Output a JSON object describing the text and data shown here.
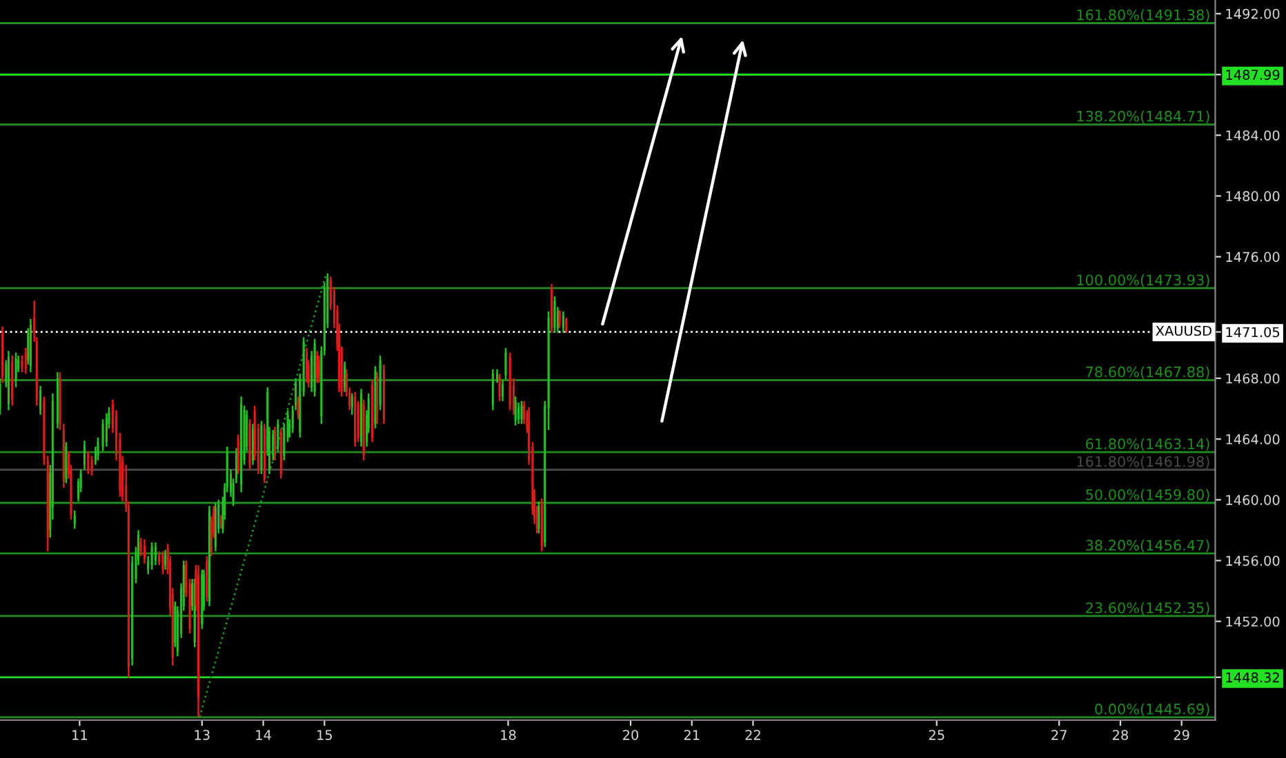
{
  "chart_data": {
    "type": "candlestick",
    "xlim": [
      9.7,
      29.55
    ],
    "ylim": [
      1445.5,
      1492.9
    ],
    "xticks": [
      11,
      13,
      14,
      15,
      18,
      20,
      21,
      22,
      25,
      27,
      28,
      29
    ],
    "yticks": [
      {
        "value": 1448.32,
        "label": "1448.32"
      },
      {
        "value": 1452,
        "label": "1452.00"
      },
      {
        "value": 1456,
        "label": "1456.00"
      },
      {
        "value": 1460,
        "label": "1460.00"
      },
      {
        "value": 1464,
        "label": "1464.00"
      },
      {
        "value": 1468,
        "label": "1468.00"
      },
      {
        "value": 1471.05,
        "label": "1471.05"
      },
      {
        "value": 1476,
        "label": "1476.00"
      },
      {
        "value": 1480,
        "label": "1480.00"
      },
      {
        "value": 1484,
        "label": "1484.00"
      },
      {
        "value": 1487.99,
        "label": "1487.99"
      },
      {
        "value": 1492,
        "label": "1492.00"
      }
    ],
    "line_style": "dotted",
    "series": [
      {
        "type": "line",
        "color": "#1f8f1f",
        "x": [
          12.96,
          15.03
        ],
        "values": [
          1445.7,
          1474.9
        ]
      },
      {
        "color": "#22c022",
        "x": [
          9.7,
          9.8,
          9.84,
          9.96,
          10.0,
          10.16,
          10.2,
          10.36,
          10.52,
          10.56,
          10.64,
          10.78,
          10.92,
          10.98,
          11.02,
          11.08,
          11.26,
          11.3,
          11.38,
          11.44,
          11.48,
          11.86,
          11.92,
          11.96,
          12.12,
          12.18,
          12.24,
          12.4,
          12.56,
          12.6,
          12.66,
          12.7,
          12.84,
          12.88,
          13.0,
          13.03,
          13.12,
          13.22,
          13.27,
          13.34,
          13.37,
          13.41,
          13.47,
          13.51,
          13.56,
          13.64,
          13.69,
          13.73,
          13.83,
          13.97,
          14.07,
          14.1,
          14.16,
          14.24,
          14.34,
          14.4,
          14.43,
          14.48,
          14.53,
          14.6,
          14.66,
          14.79,
          14.84,
          14.95,
          15.0,
          15.05,
          15.33,
          15.45,
          15.6,
          15.69,
          15.72,
          15.83,
          15.91,
          17.75,
          17.82,
          17.91,
          17.96,
          18.12,
          18.17,
          18.22,
          18.5,
          18.6,
          18.66,
          18.76,
          18.81,
          18.9
        ],
        "ohlc": [
          [
            1466.0,
            1468.0,
            1465.6,
            1467.6
          ],
          [
            1467.7,
            1469.2,
            1467.4,
            1468.9
          ],
          [
            1466.3,
            1469.8,
            1465.9,
            1469.4
          ],
          [
            1467.8,
            1469.7,
            1467.4,
            1469.3
          ],
          [
            1468.6,
            1469.5,
            1468.4,
            1469.2
          ],
          [
            1469.2,
            1471.3,
            1468.9,
            1471.0
          ],
          [
            1468.8,
            1471.9,
            1468.4,
            1471.5
          ],
          [
            1465.9,
            1467.5,
            1465.6,
            1467.2
          ],
          [
            1458.0,
            1462.3,
            1457.5,
            1461.8
          ],
          [
            1459.5,
            1467.0,
            1458.7,
            1466.5
          ],
          [
            1465.0,
            1468.4,
            1464.7,
            1468.0
          ],
          [
            1461.4,
            1463.8,
            1461.1,
            1463.5
          ],
          [
            1458.4,
            1459.3,
            1458.1,
            1459.0
          ],
          [
            1460.1,
            1461.4,
            1459.9,
            1461.2
          ],
          [
            1460.8,
            1462.0,
            1460.5,
            1461.7
          ],
          [
            1462.3,
            1463.9,
            1462.0,
            1463.6
          ],
          [
            1462.5,
            1463.5,
            1462.3,
            1463.2
          ],
          [
            1462.9,
            1464.1,
            1462.6,
            1463.8
          ],
          [
            1463.5,
            1465.3,
            1463.2,
            1465.0
          ],
          [
            1463.8,
            1465.7,
            1463.5,
            1465.4
          ],
          [
            1465.0,
            1466.1,
            1464.7,
            1465.8
          ],
          [
            1449.5,
            1456.3,
            1449.1,
            1455.9
          ],
          [
            1454.8,
            1456.9,
            1454.5,
            1456.6
          ],
          [
            1456.0,
            1458.0,
            1455.7,
            1457.7
          ],
          [
            1455.4,
            1456.3,
            1455.1,
            1456.0
          ],
          [
            1455.7,
            1457.2,
            1455.4,
            1456.9
          ],
          [
            1456.0,
            1457.2,
            1455.7,
            1456.9
          ],
          [
            1455.7,
            1456.7,
            1455.4,
            1456.4
          ],
          [
            1450.6,
            1453.3,
            1450.3,
            1453.0
          ],
          [
            1450.0,
            1453.0,
            1449.7,
            1452.7
          ],
          [
            1451.2,
            1454.5,
            1450.9,
            1454.2
          ],
          [
            1453.0,
            1456.0,
            1452.7,
            1455.7
          ],
          [
            1453.0,
            1454.8,
            1452.7,
            1454.5
          ],
          [
            1450.6,
            1454.8,
            1450.3,
            1454.5
          ],
          [
            1451.8,
            1455.4,
            1451.5,
            1455.1
          ],
          [
            1453.0,
            1455.4,
            1452.7,
            1455.1
          ],
          [
            1453.3,
            1459.6,
            1453.0,
            1459.3
          ],
          [
            1456.9,
            1459.8,
            1456.6,
            1459.5
          ],
          [
            1458.1,
            1460.0,
            1457.8,
            1459.7
          ],
          [
            1458.1,
            1460.2,
            1457.8,
            1459.9
          ],
          [
            1459.0,
            1461.1,
            1458.7,
            1460.8
          ],
          [
            1460.8,
            1463.5,
            1460.5,
            1463.2
          ],
          [
            1460.5,
            1462.0,
            1460.2,
            1461.7
          ],
          [
            1459.9,
            1461.4,
            1459.6,
            1461.1
          ],
          [
            1461.4,
            1463.4,
            1461.1,
            1463.1
          ],
          [
            1461.0,
            1466.8,
            1460.5,
            1466.3
          ],
          [
            1462.6,
            1466.2,
            1462.3,
            1465.9
          ],
          [
            1463.5,
            1465.9,
            1463.2,
            1465.6
          ],
          [
            1462.6,
            1465.0,
            1462.3,
            1464.7
          ],
          [
            1462.0,
            1465.2,
            1461.7,
            1464.9
          ],
          [
            1463.2,
            1467.4,
            1462.9,
            1467.1
          ],
          [
            1462.0,
            1464.8,
            1461.7,
            1464.5
          ],
          [
            1462.9,
            1464.6,
            1462.6,
            1464.3
          ],
          [
            1463.5,
            1465.3,
            1463.2,
            1465.0
          ],
          [
            1462.9,
            1465.0,
            1462.6,
            1464.7
          ],
          [
            1464.1,
            1465.9,
            1463.8,
            1465.6
          ],
          [
            1464.4,
            1465.3,
            1464.1,
            1465.0
          ],
          [
            1464.7,
            1466.2,
            1464.4,
            1465.9
          ],
          [
            1466.2,
            1468.0,
            1465.9,
            1467.7
          ],
          [
            1464.4,
            1468.3,
            1464.1,
            1468.0
          ],
          [
            1467.1,
            1470.7,
            1466.8,
            1470.4
          ],
          [
            1467.4,
            1469.8,
            1467.1,
            1469.5
          ],
          [
            1467.1,
            1470.6,
            1466.8,
            1470.3
          ],
          [
            1465.5,
            1470.1,
            1465.0,
            1469.8
          ],
          [
            1469.8,
            1474.3,
            1469.5,
            1474.0
          ],
          [
            1471.6,
            1474.9,
            1471.3,
            1474.6
          ],
          [
            1467.4,
            1469.1,
            1467.1,
            1468.8
          ],
          [
            1466.1,
            1467.0,
            1465.6,
            1466.8
          ],
          [
            1463.8,
            1467.3,
            1463.5,
            1467.0
          ],
          [
            1463.8,
            1465.9,
            1463.5,
            1465.6
          ],
          [
            1464.7,
            1467.0,
            1464.4,
            1466.7
          ],
          [
            1465.0,
            1468.8,
            1464.7,
            1468.5
          ],
          [
            1466.2,
            1469.5,
            1465.9,
            1469.2
          ],
          [
            1466.2,
            1468.6,
            1465.9,
            1468.3
          ],
          [
            1467.8,
            1468.6,
            1467.7,
            1468.3
          ],
          [
            1466.8,
            1467.9,
            1466.5,
            1467.6
          ],
          [
            1468.2,
            1470.0,
            1467.9,
            1469.7
          ],
          [
            1465.2,
            1466.8,
            1464.9,
            1466.5
          ],
          [
            1465.3,
            1466.4,
            1465.0,
            1466.1
          ],
          [
            1465.3,
            1466.5,
            1465.0,
            1466.2
          ],
          [
            1458.1,
            1459.9,
            1457.8,
            1459.6
          ],
          [
            1457.2,
            1466.5,
            1456.9,
            1466.2
          ],
          [
            1466.0,
            1472.4,
            1464.6,
            1472.0
          ],
          [
            1471.3,
            1473.4,
            1471.0,
            1473.1
          ],
          [
            1471.3,
            1472.7,
            1471.0,
            1472.4
          ],
          [
            1471.3,
            1472.4,
            1471.0,
            1472.1
          ]
        ]
      },
      {
        "color": "#e01b1b",
        "x": [
          9.74,
          9.9,
          10.06,
          10.12,
          10.26,
          10.3,
          10.42,
          10.48,
          10.68,
          10.74,
          10.82,
          10.86,
          11.14,
          11.2,
          11.54,
          11.6,
          11.66,
          11.7,
          11.76,
          11.8,
          12.0,
          12.06,
          12.3,
          12.36,
          12.44,
          12.48,
          12.52,
          12.74,
          12.8,
          12.9,
          12.94,
          13.08,
          13.15,
          13.19,
          13.31,
          13.59,
          13.78,
          13.86,
          13.92,
          14.02,
          14.19,
          14.29,
          14.57,
          14.71,
          14.74,
          14.88,
          14.91,
          15.1,
          15.16,
          15.21,
          15.24,
          15.28,
          15.36,
          15.41,
          15.5,
          15.55,
          15.64,
          15.78,
          15.86,
          15.97,
          17.86,
          18.03,
          18.09,
          18.26,
          18.31,
          18.34,
          18.4,
          18.43,
          18.47,
          18.55,
          18.71,
          18.84,
          18.95
        ],
        "ohlc": [
          [
            1471.0,
            1471.4,
            1467.7,
            1468.1
          ],
          [
            1469.1,
            1469.5,
            1466.2,
            1466.6
          ],
          [
            1469.2,
            1469.5,
            1468.4,
            1468.7
          ],
          [
            1469.6,
            1470.0,
            1468.3,
            1468.6
          ],
          [
            1472.0,
            1473.1,
            1470.4,
            1471.0
          ],
          [
            1470.4,
            1470.7,
            1466.2,
            1466.6
          ],
          [
            1466.5,
            1466.8,
            1462.3,
            1462.7
          ],
          [
            1462.5,
            1462.9,
            1456.6,
            1457.5
          ],
          [
            1468.0,
            1468.4,
            1464.6,
            1465.0
          ],
          [
            1464.6,
            1465.0,
            1460.8,
            1461.2
          ],
          [
            1463.0,
            1463.2,
            1461.4,
            1461.7
          ],
          [
            1462.0,
            1462.3,
            1458.7,
            1459.0
          ],
          [
            1463.0,
            1463.2,
            1461.7,
            1462.0
          ],
          [
            1462.6,
            1462.9,
            1461.6,
            1461.9
          ],
          [
            1466.3,
            1466.6,
            1464.4,
            1464.7
          ],
          [
            1465.6,
            1465.9,
            1462.6,
            1462.9
          ],
          [
            1464.0,
            1464.4,
            1460.2,
            1460.6
          ],
          [
            1462.6,
            1462.9,
            1459.9,
            1460.2
          ],
          [
            1461.0,
            1462.3,
            1459.2,
            1459.5
          ],
          [
            1459.6,
            1459.9,
            1448.3,
            1449.0
          ],
          [
            1457.2,
            1457.5,
            1456.3,
            1456.6
          ],
          [
            1457.0,
            1457.4,
            1455.8,
            1456.1
          ],
          [
            1456.4,
            1456.6,
            1455.7,
            1455.9
          ],
          [
            1456.4,
            1456.6,
            1455.1,
            1455.4
          ],
          [
            1456.8,
            1457.1,
            1455.1,
            1455.4
          ],
          [
            1456.0,
            1456.3,
            1452.4,
            1452.8
          ],
          [
            1453.8,
            1454.2,
            1449.1,
            1449.6
          ],
          [
            1455.7,
            1456.0,
            1453.6,
            1453.9
          ],
          [
            1454.5,
            1454.8,
            1451.2,
            1451.5
          ],
          [
            1455.4,
            1455.7,
            1452.7,
            1453.0
          ],
          [
            1455.0,
            1455.7,
            1445.7,
            1447.0
          ],
          [
            1456.0,
            1456.3,
            1453.3,
            1453.6
          ],
          [
            1458.6,
            1458.9,
            1456.3,
            1456.6
          ],
          [
            1459.3,
            1459.6,
            1457.5,
            1457.8
          ],
          [
            1458.7,
            1459.0,
            1458.1,
            1458.4
          ],
          [
            1464.0,
            1464.3,
            1461.7,
            1462.0
          ],
          [
            1465.0,
            1465.3,
            1462.0,
            1462.3
          ],
          [
            1465.9,
            1466.2,
            1462.6,
            1462.9
          ],
          [
            1464.7,
            1465.0,
            1461.7,
            1462.0
          ],
          [
            1464.7,
            1465.0,
            1461.1,
            1461.4
          ],
          [
            1464.5,
            1464.8,
            1462.6,
            1462.9
          ],
          [
            1464.4,
            1464.7,
            1461.4,
            1461.7
          ],
          [
            1466.5,
            1466.8,
            1465.3,
            1465.6
          ],
          [
            1469.7,
            1470.0,
            1467.7,
            1468.0
          ],
          [
            1468.9,
            1469.2,
            1467.4,
            1467.7
          ],
          [
            1469.5,
            1469.8,
            1467.7,
            1468.0
          ],
          [
            1469.2,
            1469.5,
            1467.7,
            1468.0
          ],
          [
            1474.5,
            1474.7,
            1472.5,
            1472.8
          ],
          [
            1473.7,
            1474.0,
            1471.3,
            1471.6
          ],
          [
            1472.5,
            1472.8,
            1469.8,
            1470.1
          ],
          [
            1471.3,
            1471.6,
            1467.1,
            1467.4
          ],
          [
            1470.0,
            1470.1,
            1466.8,
            1467.1
          ],
          [
            1468.3,
            1468.6,
            1466.8,
            1467.1
          ],
          [
            1467.1,
            1467.4,
            1465.9,
            1466.2
          ],
          [
            1466.8,
            1467.1,
            1463.5,
            1463.8
          ],
          [
            1466.3,
            1466.5,
            1463.8,
            1464.1
          ],
          [
            1466.3,
            1466.6,
            1462.6,
            1462.9
          ],
          [
            1467.6,
            1467.9,
            1463.8,
            1464.1
          ],
          [
            1468.1,
            1468.4,
            1465.0,
            1465.3
          ],
          [
            1468.6,
            1468.9,
            1465.0,
            1465.3
          ],
          [
            1468.1,
            1468.3,
            1466.5,
            1466.8
          ],
          [
            1469.4,
            1469.7,
            1465.9,
            1466.2
          ],
          [
            1467.5,
            1468.0,
            1465.6,
            1465.9
          ],
          [
            1466.2,
            1466.5,
            1465.0,
            1465.3
          ],
          [
            1465.7,
            1465.9,
            1464.4,
            1464.7
          ],
          [
            1465.2,
            1466.1,
            1462.3,
            1462.6
          ],
          [
            1463.5,
            1463.8,
            1459.0,
            1459.3
          ],
          [
            1460.4,
            1460.7,
            1458.4,
            1458.7
          ],
          [
            1459.3,
            1459.6,
            1457.8,
            1458.1
          ],
          [
            1459.8,
            1460.1,
            1456.6,
            1456.9
          ],
          [
            1473.9,
            1474.2,
            1471.0,
            1471.3
          ],
          [
            1472.4,
            1472.5,
            1471.3,
            1471.6
          ],
          [
            1471.9,
            1472.0,
            1471.0,
            1471.05
          ]
        ]
      }
    ],
    "ref_lines": [
      {
        "axis": "y",
        "value": 1491.38,
        "label": "161.80%(1491.38)",
        "color": "#1f8f1f"
      },
      {
        "axis": "y",
        "value": 1487.99,
        "color": "#22e022"
      },
      {
        "axis": "y",
        "value": 1484.71,
        "label": "138.20%(1484.71)",
        "color": "#1f8f1f"
      },
      {
        "axis": "y",
        "value": 1473.93,
        "label": "100.00%(1473.93)",
        "color": "#1f8f1f"
      },
      {
        "axis": "y",
        "value": 1471.05,
        "color": "#ffffff",
        "line_style": "dotted"
      },
      {
        "axis": "y",
        "value": 1467.88,
        "label": "78.60%(1467.88)",
        "color": "#1f8f1f"
      },
      {
        "axis": "y",
        "value": 1463.14,
        "label": "61.80%(1463.14)",
        "color": "#1f8f1f"
      },
      {
        "axis": "y",
        "value": 1461.98,
        "label": "161.80%(1461.98)",
        "color": "#4a4a4a"
      },
      {
        "axis": "y",
        "value": 1459.8,
        "label": "50.00%(1459.80)",
        "color": "#1f8f1f"
      },
      {
        "axis": "y",
        "value": 1456.47,
        "label": "38.20%(1456.47)",
        "color": "#1f8f1f"
      },
      {
        "axis": "y",
        "value": 1452.35,
        "label": "23.60%(1452.35)",
        "color": "#1f8f1f"
      },
      {
        "axis": "y",
        "value": 1448.32,
        "color": "#22e022"
      },
      {
        "axis": "y",
        "value": 1445.69,
        "label": "0.00%(1445.69)",
        "color": "#1f8f1f"
      }
    ],
    "annotations": [
      {
        "text": "XAUUSD",
        "x": 29.5,
        "y": 1471.05
      }
    ]
  }
}
